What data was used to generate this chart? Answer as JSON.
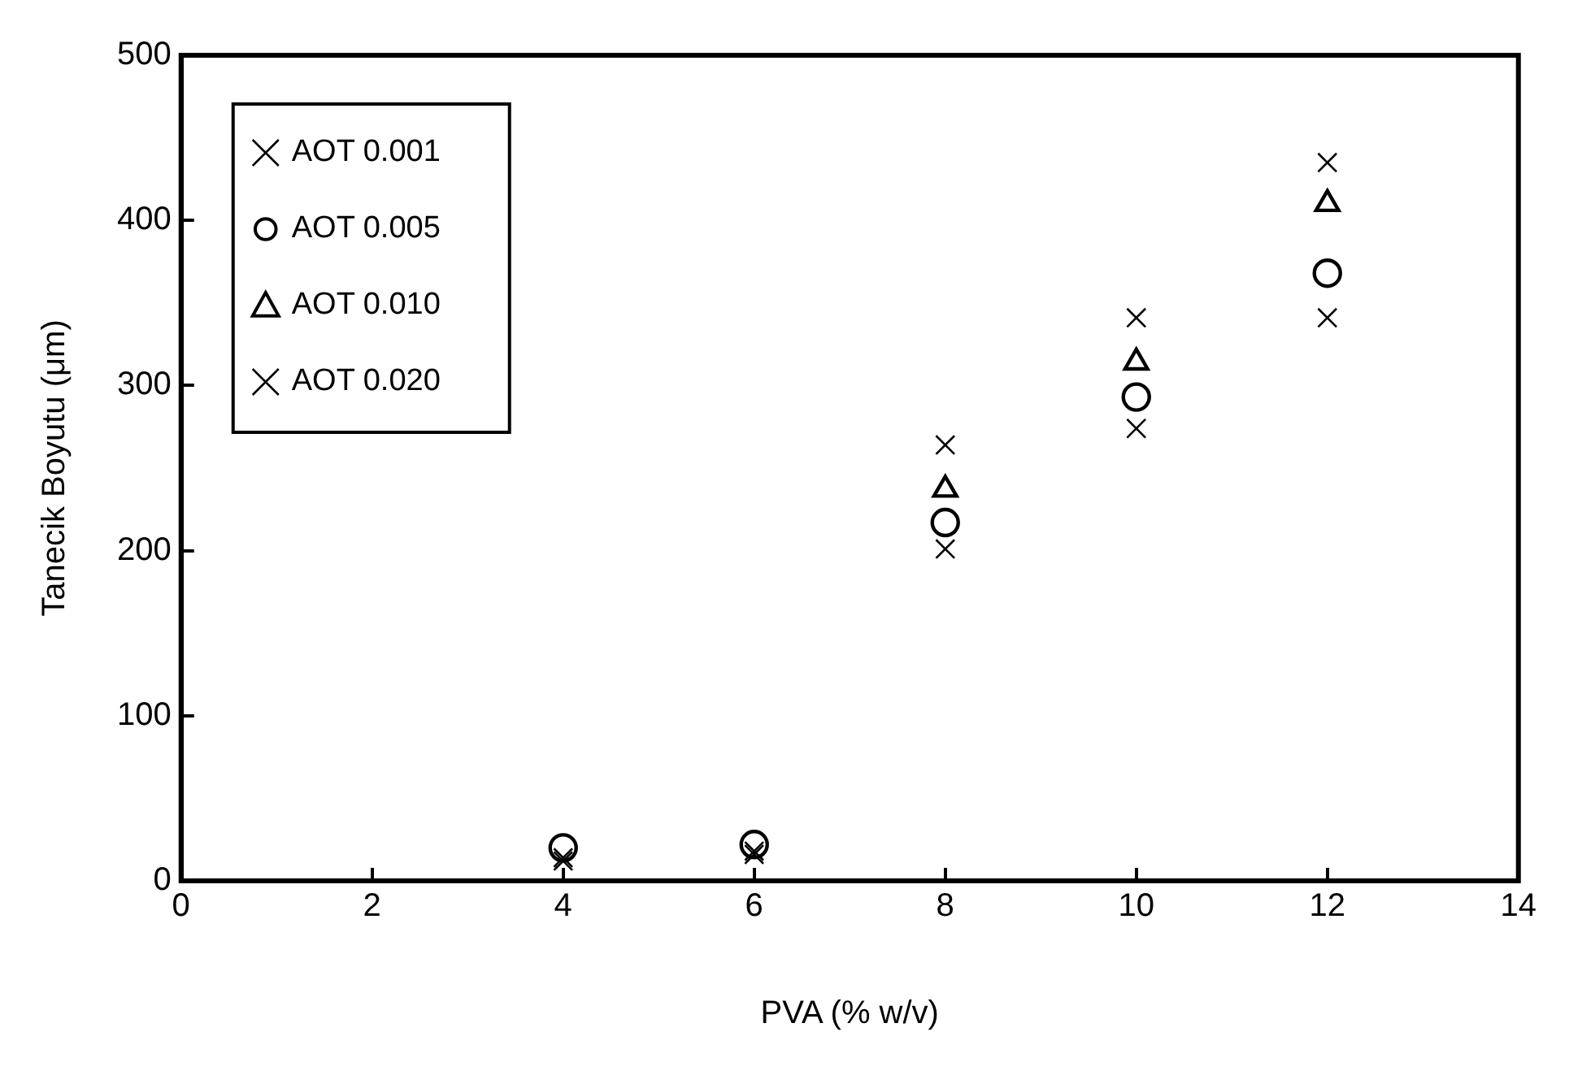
{
  "chart_data": {
    "type": "scatter",
    "xlabel": "PVA (% w/v)",
    "ylabel": "Tanecik Boyutu (μm)",
    "xlim": [
      0,
      14
    ],
    "xticks": [
      0,
      2,
      4,
      6,
      8,
      10,
      12,
      14
    ],
    "ylim": [
      0,
      500
    ],
    "yticks": [
      0,
      100,
      200,
      300,
      400,
      500
    ],
    "grid": false,
    "legend": "top left",
    "x": [
      4,
      6,
      8,
      10,
      12
    ],
    "series": [
      {
        "name": "AOT 0.001",
        "color": "#000000",
        "marker": "cross",
        "values": [
          12,
          16,
          201,
          274,
          341
        ]
      },
      {
        "name": "AOT 0.005",
        "color": "#000000",
        "marker": "circle",
        "values": [
          20,
          22,
          217,
          293,
          368
        ]
      },
      {
        "name": "AOT 0.010",
        "color": "#000000",
        "marker": "triangle",
        "values": [
          null,
          null,
          237,
          314,
          410
        ]
      },
      {
        "name": "AOT 0.020",
        "color": "#000000",
        "marker": "cross",
        "values": [
          14,
          18,
          264,
          341,
          435
        ]
      }
    ]
  }
}
